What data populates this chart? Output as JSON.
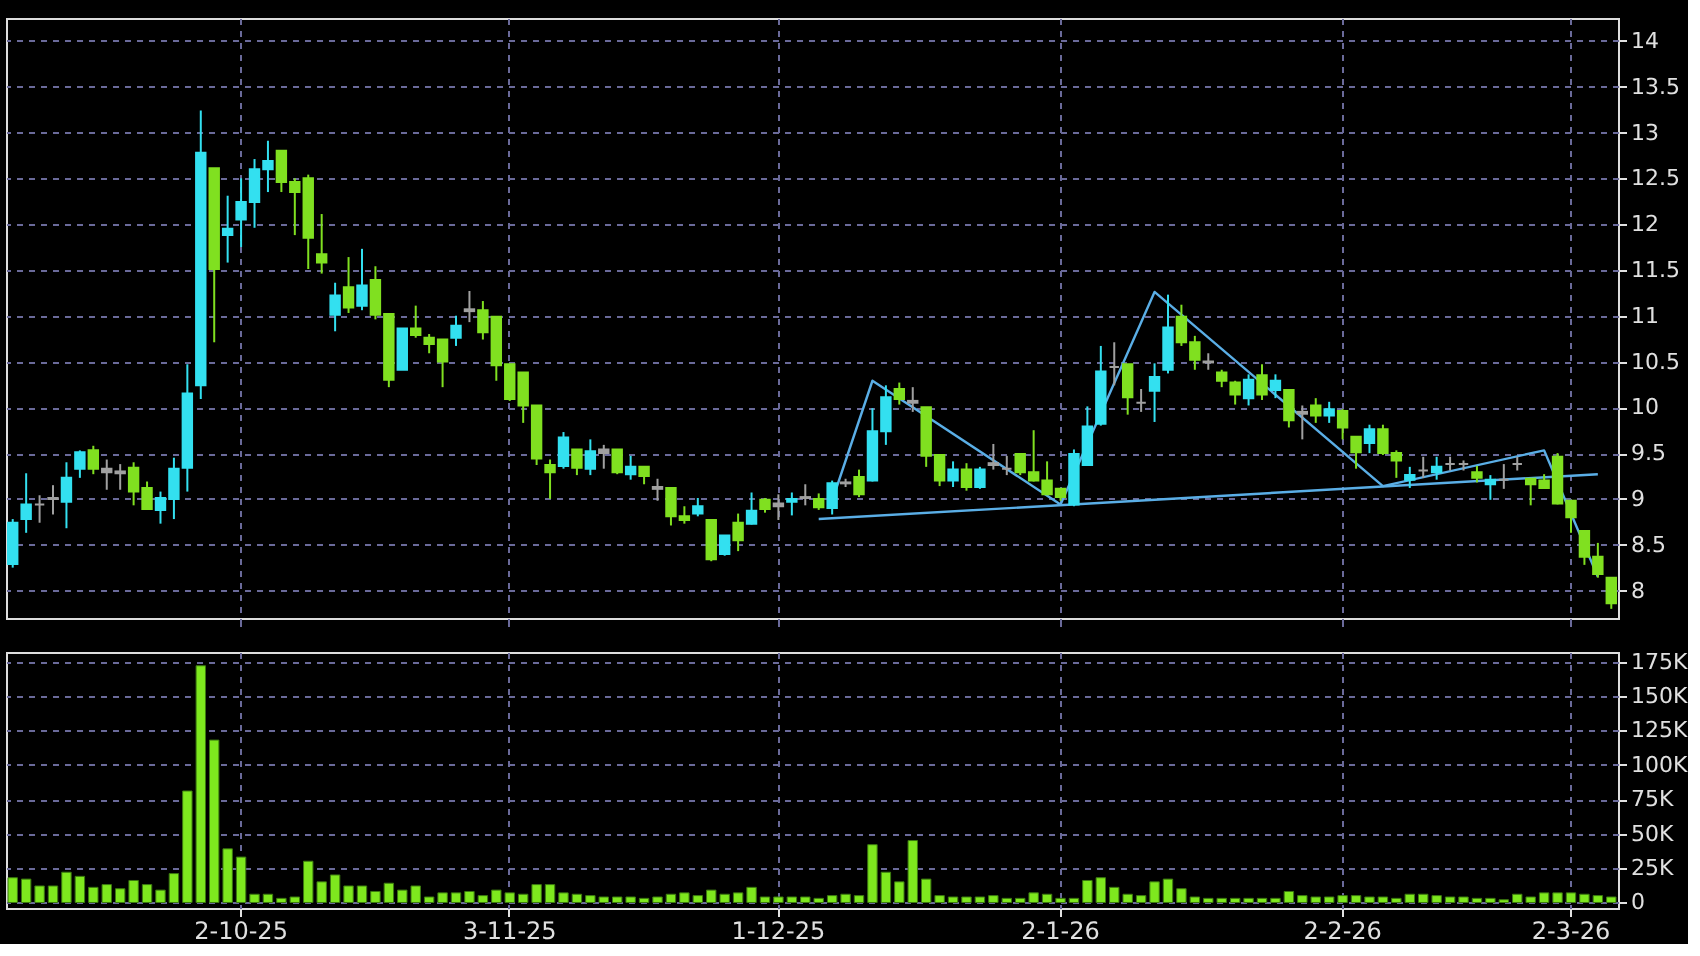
{
  "chart_data": [
    {
      "type": "candlestick",
      "categories": [
        null,
        null,
        null,
        null,
        null,
        null,
        null,
        null,
        null,
        null,
        null,
        null,
        null,
        null,
        null,
        null,
        null,
        null,
        null,
        null,
        null,
        null,
        null,
        null,
        null,
        null,
        null,
        null,
        null,
        null,
        null,
        null,
        null,
        null,
        null,
        null,
        null,
        null,
        null,
        null,
        null,
        null,
        null,
        null,
        null,
        null,
        null,
        null,
        null,
        null,
        null,
        null,
        null,
        null,
        null,
        null,
        null,
        null,
        null,
        null,
        null,
        null,
        null,
        null,
        null,
        null,
        null,
        null,
        null,
        null,
        null,
        null,
        null,
        null,
        null,
        null,
        null,
        null,
        null,
        null,
        null,
        null,
        null,
        null,
        null,
        null,
        null,
        null,
        null,
        null,
        null,
        null,
        null,
        null,
        null,
        null,
        null,
        null,
        null,
        null,
        null,
        null,
        null,
        null,
        null,
        null,
        null,
        null,
        null,
        null,
        null,
        null,
        null,
        null,
        null,
        null,
        null,
        null,
        null,
        null
      ],
      "ohlc": [
        [
          8.29,
          8.78,
          8.25,
          8.74
        ],
        [
          8.78,
          9.28,
          8.63,
          8.94
        ],
        [
          8.94,
          9.04,
          8.74,
          8.94
        ],
        [
          9.0,
          9.15,
          8.83,
          9.01
        ],
        [
          8.97,
          9.4,
          8.68,
          9.23
        ],
        [
          9.33,
          9.53,
          9.23,
          9.51
        ],
        [
          9.53,
          9.58,
          9.27,
          9.33
        ],
        [
          9.33,
          9.43,
          9.1,
          9.29
        ],
        [
          9.3,
          9.38,
          9.1,
          9.28
        ],
        [
          9.34,
          9.4,
          8.93,
          9.08
        ],
        [
          9.12,
          9.19,
          8.88,
          8.89
        ],
        [
          8.88,
          9.08,
          8.73,
          9.01
        ],
        [
          9.0,
          9.45,
          8.78,
          9.33
        ],
        [
          9.34,
          10.47,
          9.08,
          10.15
        ],
        [
          10.24,
          13.24,
          10.09,
          12.78
        ],
        [
          12.61,
          12.61,
          10.71,
          11.51
        ],
        [
          11.88,
          12.31,
          11.58,
          11.95
        ],
        [
          12.05,
          12.5,
          11.75,
          12.24
        ],
        [
          12.24,
          12.71,
          11.96,
          12.6
        ],
        [
          12.6,
          12.91,
          12.35,
          12.69
        ],
        [
          12.8,
          12.8,
          12.35,
          12.46
        ],
        [
          12.46,
          12.5,
          11.88,
          12.35
        ],
        [
          12.5,
          12.54,
          11.51,
          11.85
        ],
        [
          11.67,
          12.11,
          11.46,
          11.58
        ],
        [
          11.01,
          11.36,
          10.83,
          11.22
        ],
        [
          11.31,
          11.64,
          11.03,
          11.09
        ],
        [
          11.11,
          11.73,
          11.06,
          11.33
        ],
        [
          11.39,
          11.54,
          10.96,
          11.01
        ],
        [
          11.02,
          11.02,
          10.22,
          10.3
        ],
        [
          10.41,
          10.86,
          10.41,
          10.86
        ],
        [
          10.86,
          11.11,
          10.76,
          10.79
        ],
        [
          10.76,
          10.8,
          10.59,
          10.69
        ],
        [
          10.74,
          10.74,
          10.22,
          10.5
        ],
        [
          10.76,
          11.0,
          10.67,
          10.89
        ],
        [
          11.07,
          11.27,
          10.93,
          11.05
        ],
        [
          11.06,
          11.16,
          10.74,
          10.82
        ],
        [
          10.99,
          10.99,
          10.29,
          10.46
        ],
        [
          10.47,
          10.47,
          10.07,
          10.09
        ],
        [
          10.38,
          10.38,
          9.83,
          10.02
        ],
        [
          10.02,
          10.02,
          9.37,
          9.44
        ],
        [
          9.37,
          9.43,
          9.0,
          9.29
        ],
        [
          9.36,
          9.73,
          9.33,
          9.67
        ],
        [
          9.54,
          9.54,
          9.26,
          9.34
        ],
        [
          9.33,
          9.65,
          9.26,
          9.52
        ],
        [
          9.54,
          9.59,
          9.33,
          9.5
        ],
        [
          9.54,
          9.54,
          9.27,
          9.29
        ],
        [
          9.27,
          9.47,
          9.21,
          9.35
        ],
        [
          9.35,
          9.35,
          9.16,
          9.25
        ],
        [
          9.11,
          9.22,
          8.98,
          9.13
        ],
        [
          9.12,
          9.12,
          8.71,
          8.81
        ],
        [
          8.81,
          8.92,
          8.73,
          8.77
        ],
        [
          8.84,
          9.01,
          8.81,
          8.92
        ],
        [
          8.77,
          8.77,
          8.32,
          8.34
        ],
        [
          8.4,
          8.6,
          8.38,
          8.6
        ],
        [
          8.74,
          8.84,
          8.43,
          8.55
        ],
        [
          8.73,
          9.07,
          8.72,
          8.87
        ],
        [
          8.99,
          9.01,
          8.85,
          8.89
        ],
        [
          8.95,
          9.05,
          8.77,
          8.92
        ],
        [
          8.97,
          9.07,
          8.82,
          9.0
        ],
        [
          9.01,
          9.16,
          8.93,
          9.02
        ],
        [
          9.0,
          9.06,
          8.88,
          8.91
        ],
        [
          8.9,
          9.2,
          8.83,
          9.17
        ],
        [
          9.17,
          9.22,
          9.13,
          9.18
        ],
        [
          9.24,
          9.32,
          9.02,
          9.05
        ],
        [
          9.2,
          9.99,
          9.19,
          9.74
        ],
        [
          9.74,
          10.24,
          9.59,
          10.11
        ],
        [
          10.2,
          10.27,
          10.03,
          10.09
        ],
        [
          10.07,
          10.22,
          9.95,
          10.05
        ],
        [
          10.0,
          10.0,
          9.35,
          9.47
        ],
        [
          9.48,
          9.48,
          9.14,
          9.2
        ],
        [
          9.2,
          9.41,
          9.13,
          9.32
        ],
        [
          9.32,
          9.39,
          9.09,
          9.13
        ],
        [
          9.13,
          9.35,
          9.11,
          9.32
        ],
        [
          9.39,
          9.6,
          9.32,
          9.37
        ],
        [
          9.33,
          9.47,
          9.26,
          9.33
        ],
        [
          9.49,
          9.49,
          9.26,
          9.29
        ],
        [
          9.29,
          9.75,
          9.19,
          9.2
        ],
        [
          9.2,
          9.41,
          9.04,
          9.05
        ],
        [
          9.11,
          9.11,
          8.98,
          9.02
        ],
        [
          8.94,
          9.54,
          8.92,
          9.49
        ],
        [
          9.37,
          10.01,
          9.36,
          9.79
        ],
        [
          9.82,
          10.67,
          9.8,
          10.39
        ],
        [
          10.44,
          10.71,
          10.24,
          10.44
        ],
        [
          10.47,
          10.47,
          9.92,
          10.11
        ],
        [
          10.05,
          10.2,
          9.95,
          10.05
        ],
        [
          10.18,
          10.48,
          9.84,
          10.33
        ],
        [
          10.41,
          11.23,
          10.37,
          10.87
        ],
        [
          10.99,
          11.12,
          10.67,
          10.71
        ],
        [
          10.71,
          10.78,
          10.41,
          10.52
        ],
        [
          10.5,
          10.59,
          10.41,
          10.49
        ],
        [
          10.38,
          10.41,
          10.22,
          10.29
        ],
        [
          10.27,
          10.29,
          10.03,
          10.14
        ],
        [
          10.1,
          10.36,
          10.02,
          10.3
        ],
        [
          10.35,
          10.47,
          10.08,
          10.14
        ],
        [
          10.19,
          10.36,
          10.1,
          10.29
        ],
        [
          10.19,
          10.19,
          9.78,
          9.86
        ],
        [
          9.95,
          10.02,
          9.65,
          9.93
        ],
        [
          10.02,
          10.1,
          9.83,
          9.91
        ],
        [
          9.91,
          10.06,
          9.83,
          9.98
        ],
        [
          9.96,
          9.98,
          9.65,
          9.78
        ],
        [
          9.68,
          9.68,
          9.33,
          9.51
        ],
        [
          9.61,
          9.81,
          9.5,
          9.76
        ],
        [
          9.76,
          9.81,
          9.48,
          9.5
        ],
        [
          9.5,
          9.53,
          9.23,
          9.42
        ],
        [
          9.21,
          9.35,
          9.12,
          9.26
        ],
        [
          9.31,
          9.46,
          9.23,
          9.31
        ],
        [
          9.29,
          9.46,
          9.21,
          9.35
        ],
        [
          9.38,
          9.46,
          9.31,
          9.38
        ],
        [
          9.38,
          9.42,
          9.31,
          9.38
        ],
        [
          9.29,
          9.36,
          9.18,
          9.23
        ],
        [
          9.16,
          9.26,
          8.99,
          9.21
        ],
        [
          9.21,
          9.38,
          9.11,
          9.21
        ],
        [
          9.38,
          9.46,
          9.31,
          9.38
        ],
        [
          9.22,
          9.23,
          8.93,
          9.16
        ],
        [
          9.2,
          9.27,
          9.11,
          9.12
        ],
        [
          9.46,
          9.5,
          8.94,
          8.95
        ],
        [
          8.98,
          8.98,
          8.63,
          8.8
        ],
        [
          8.65,
          8.65,
          8.28,
          8.37
        ],
        [
          8.37,
          8.52,
          8.14,
          8.18
        ],
        [
          8.14,
          8.14,
          7.8,
          7.86
        ]
      ],
      "colors": [
        "#33e0f0",
        "#33e0f0",
        "#a0a0a0",
        "#a0a0a0",
        "#33e0f0",
        "#33e0f0",
        "#80e020",
        "#a0a0a0",
        "#a0a0a0",
        "#80e020",
        "#80e020",
        "#33e0f0",
        "#33e0f0",
        "#33e0f0",
        "#33e0f0",
        "#80e020",
        "#33e0f0",
        "#33e0f0",
        "#33e0f0",
        "#33e0f0",
        "#80e020",
        "#80e020",
        "#80e020",
        "#80e020",
        "#33e0f0",
        "#80e020",
        "#33e0f0",
        "#80e020",
        "#80e020",
        "#33e0f0",
        "#80e020",
        "#80e020",
        "#80e020",
        "#33e0f0",
        "#a0a0a0",
        "#80e020",
        "#80e020",
        "#80e020",
        "#80e020",
        "#80e020",
        "#80e020",
        "#33e0f0",
        "#80e020",
        "#33e0f0",
        "#a0a0a0",
        "#80e020",
        "#33e0f0",
        "#80e020",
        "#a0a0a0",
        "#80e020",
        "#80e020",
        "#33e0f0",
        "#80e020",
        "#33e0f0",
        "#80e020",
        "#33e0f0",
        "#80e020",
        "#a0a0a0",
        "#33e0f0",
        "#a0a0a0",
        "#80e020",
        "#33e0f0",
        "#a0a0a0",
        "#80e020",
        "#33e0f0",
        "#33e0f0",
        "#80e020",
        "#a0a0a0",
        "#80e020",
        "#80e020",
        "#33e0f0",
        "#80e020",
        "#33e0f0",
        "#a0a0a0",
        "#a0a0a0",
        "#80e020",
        "#80e020",
        "#80e020",
        "#80e020",
        "#33e0f0",
        "#33e0f0",
        "#33e0f0",
        "#a0a0a0",
        "#80e020",
        "#a0a0a0",
        "#33e0f0",
        "#33e0f0",
        "#80e020",
        "#80e020",
        "#a0a0a0",
        "#80e020",
        "#80e020",
        "#33e0f0",
        "#80e020",
        "#33e0f0",
        "#80e020",
        "#a0a0a0",
        "#80e020",
        "#33e0f0",
        "#80e020",
        "#80e020",
        "#33e0f0",
        "#80e020",
        "#80e020",
        "#33e0f0",
        "#a0a0a0",
        "#33e0f0",
        "#a0a0a0",
        "#a0a0a0",
        "#80e020",
        "#33e0f0",
        "#a0a0a0",
        "#a0a0a0",
        "#80e020",
        "#80e020",
        "#80e020",
        "#80e020",
        "#80e020",
        "#80e020",
        "#80e020"
      ],
      "series": [
        {
          "type": "line",
          "color": "#5aaee6",
          "values": [
            null,
            null,
            null,
            null,
            null,
            null,
            null,
            null,
            null,
            null,
            null,
            null,
            null,
            null,
            null,
            null,
            null,
            null,
            null,
            null,
            null,
            null,
            null,
            null,
            null,
            null,
            null,
            null,
            null,
            null,
            null,
            null,
            null,
            null,
            null,
            null,
            null,
            null,
            null,
            null,
            null,
            null,
            null,
            null,
            null,
            null,
            null,
            null,
            null,
            null,
            null,
            null,
            null,
            null,
            null,
            null,
            null,
            null,
            null,
            null,
            null,
            8.98,
            null,
            null,
            10.29,
            null,
            null,
            null,
            null,
            null,
            null,
            null,
            null,
            null,
            null,
            null,
            null,
            null,
            8.94,
            null,
            null,
            null,
            null,
            null,
            null,
            11.26,
            null,
            null,
            null,
            null,
            null,
            null,
            null,
            null,
            null,
            null,
            null,
            null,
            null,
            null,
            null,
            null,
            9.14,
            null,
            null,
            null,
            null,
            null,
            null,
            null,
            null,
            null,
            null,
            null,
            9.53,
            null,
            null,
            null,
            8.15,
            null
          ]
        },
        {
          "type": "line",
          "color": "#5aaee6",
          "values": [
            null,
            null,
            null,
            null,
            null,
            null,
            null,
            null,
            null,
            null,
            null,
            null,
            null,
            null,
            null,
            null,
            null,
            null,
            null,
            null,
            null,
            null,
            null,
            null,
            null,
            null,
            null,
            null,
            null,
            null,
            null,
            null,
            null,
            null,
            null,
            null,
            null,
            null,
            null,
            null,
            null,
            null,
            null,
            null,
            null,
            null,
            null,
            null,
            null,
            null,
            null,
            null,
            null,
            null,
            null,
            null,
            null,
            null,
            null,
            null,
            8.78,
            null,
            null,
            null,
            null,
            null,
            null,
            null,
            null,
            null,
            null,
            null,
            null,
            null,
            null,
            null,
            null,
            null,
            null,
            null,
            null,
            null,
            null,
            null,
            null,
            null,
            null,
            null,
            null,
            null,
            null,
            null,
            null,
            null,
            null,
            null,
            null,
            null,
            null,
            null,
            null,
            null,
            null,
            null,
            null,
            null,
            null,
            null,
            null,
            null,
            null,
            null,
            null,
            null,
            null,
            null,
            null,
            null,
            9.27,
            null
          ]
        }
      ],
      "ylim": [
        7.7,
        14.25
      ],
      "yticks": [
        8,
        8.5,
        9,
        9.5,
        10,
        10.5,
        11,
        11.5,
        12,
        12.5,
        13,
        13.5,
        14
      ],
      "grid": true,
      "tick_labels": "y"
    },
    {
      "type": "bar",
      "color": "#7ee81e",
      "categories": [
        null,
        null,
        null,
        null,
        null,
        null,
        null,
        null,
        null,
        null,
        null,
        null,
        null,
        null,
        null,
        null,
        null,
        "2-10-25",
        null,
        null,
        null,
        null,
        null,
        null,
        null,
        null,
        null,
        null,
        null,
        null,
        null,
        null,
        null,
        null,
        null,
        null,
        null,
        "3-11-25",
        null,
        null,
        null,
        null,
        null,
        null,
        null,
        null,
        null,
        null,
        null,
        null,
        null,
        null,
        null,
        null,
        null,
        null,
        null,
        "1-12-25",
        null,
        null,
        null,
        null,
        null,
        null,
        null,
        null,
        null,
        null,
        null,
        null,
        null,
        null,
        null,
        null,
        null,
        null,
        null,
        null,
        "2-1-26",
        null,
        null,
        null,
        null,
        null,
        null,
        null,
        null,
        null,
        null,
        null,
        null,
        null,
        null,
        null,
        null,
        null,
        null,
        null,
        null,
        "2-2-26",
        null,
        null,
        null,
        null,
        null,
        null,
        null,
        null,
        null,
        null,
        null,
        null,
        null,
        null,
        null,
        null,
        "2-3-26",
        null,
        null,
        null
      ],
      "values": [
        18,
        17,
        12,
        12,
        22,
        19,
        11,
        13,
        10,
        16,
        13,
        9,
        21,
        81,
        172,
        118,
        39,
        33,
        6,
        6,
        3,
        4,
        30,
        15,
        20,
        12,
        12,
        8,
        14,
        9,
        12,
        4,
        7,
        7,
        8,
        5,
        9,
        7,
        6,
        13,
        13,
        7,
        6,
        5,
        4,
        4,
        4,
        3,
        4,
        6,
        7,
        5,
        9,
        6,
        7,
        11,
        4,
        4,
        4,
        4,
        3,
        5,
        6,
        5,
        42,
        22,
        15,
        45,
        17,
        5,
        4,
        4,
        4,
        5,
        3,
        3,
        7,
        6,
        3,
        3,
        16,
        18,
        11,
        6,
        5,
        15,
        17,
        10,
        4,
        3,
        3,
        3,
        3,
        3,
        3,
        8,
        5,
        4,
        4,
        5,
        5,
        4,
        4,
        3,
        6,
        6,
        5,
        4,
        4,
        3,
        3,
        2,
        6,
        4,
        7,
        7,
        7,
        6,
        5,
        4
      ],
      "ylim": [
        -4,
        182
      ],
      "yticks": [
        0,
        {
          "value": 25,
          "label": "25K"
        },
        {
          "value": 50,
          "label": "50K"
        },
        {
          "value": 75,
          "label": "75K"
        },
        {
          "value": 100,
          "label": "100K"
        },
        {
          "value": 125,
          "label": "125K"
        },
        {
          "value": 150,
          "label": "150K"
        },
        {
          "value": 175,
          "label": "175K"
        }
      ],
      "grid": true
    }
  ]
}
